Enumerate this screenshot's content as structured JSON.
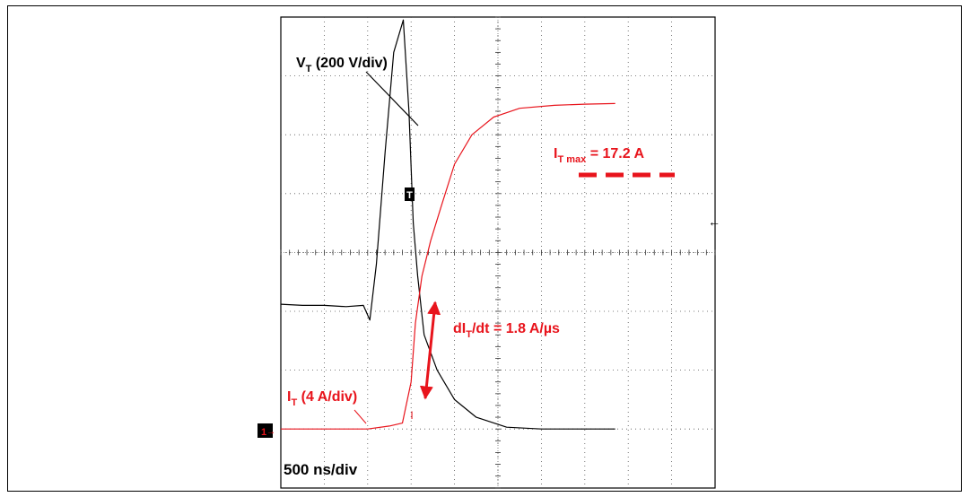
{
  "chart_data": {
    "type": "line",
    "grid": true,
    "x_divisions": 10,
    "y_divisions": 8,
    "timebase": "500 ns/div",
    "series": [
      {
        "name": "V_T (200 V/div)",
        "label_main": "V",
        "label_sub": "T",
        "label_rest": " (200 V/div)",
        "color": "#000000",
        "points_div": [
          [
            0,
            4.88
          ],
          [
            0.5,
            4.9
          ],
          [
            1.0,
            4.9
          ],
          [
            1.5,
            4.92
          ],
          [
            1.9,
            4.9
          ],
          [
            2.05,
            5.15
          ],
          [
            2.2,
            4.2
          ],
          [
            2.4,
            2.3
          ],
          [
            2.6,
            0.6
          ],
          [
            2.82,
            0.05
          ],
          [
            2.95,
            1.6
          ],
          [
            3.05,
            3.5
          ],
          [
            3.15,
            4.4
          ],
          [
            3.3,
            5.4
          ],
          [
            3.6,
            6.0
          ],
          [
            4.0,
            6.5
          ],
          [
            4.5,
            6.8
          ],
          [
            5.2,
            6.97
          ],
          [
            6.0,
            7.0
          ],
          [
            7.0,
            7.0
          ],
          [
            7.7,
            7.0
          ]
        ]
      },
      {
        "name": "I_T (4 A/div)",
        "label_main": "I",
        "label_sub": "T",
        "label_rest": " (4 A/div)",
        "color": "#e8141c",
        "points_div": [
          [
            0,
            7.0
          ],
          [
            1.0,
            7.0
          ],
          [
            2.0,
            7.0
          ],
          [
            2.5,
            6.95
          ],
          [
            2.8,
            6.9
          ],
          [
            3.0,
            6.2
          ],
          [
            3.1,
            5.2
          ],
          [
            3.25,
            4.4
          ],
          [
            3.45,
            3.8
          ],
          [
            3.7,
            3.2
          ],
          [
            4.0,
            2.5
          ],
          [
            4.4,
            2.0
          ],
          [
            4.9,
            1.7
          ],
          [
            5.5,
            1.55
          ],
          [
            6.3,
            1.5
          ],
          [
            7.0,
            1.48
          ],
          [
            7.7,
            1.47
          ]
        ]
      }
    ],
    "annotations": {
      "peak": "I",
      "peak_sub": "T max",
      "peak_rest": " = 17.2 A",
      "slope": "dI",
      "slope_sub": "T",
      "slope_rest": "/dt = 1.8 A/µs"
    },
    "markers": {
      "trigger": "T",
      "channel": "1",
      "arrow": "←"
    }
  }
}
